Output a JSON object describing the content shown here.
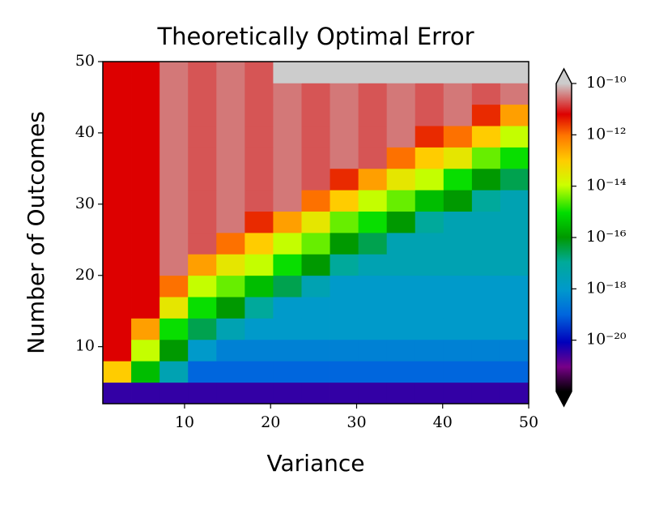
{
  "chart_data": {
    "type": "heatmap",
    "title": "Theoretically Optimal Error",
    "xlabel": "Variance",
    "ylabel": "Number of Outcomes",
    "x": [
      2.15,
      5.45,
      8.75,
      12.05,
      15.35,
      18.65,
      21.95,
      25.25,
      28.55,
      31.85,
      35.15,
      38.45,
      41.75,
      45.05,
      48.35
    ],
    "y": [
      3.5,
      6.5,
      9.5,
      12.5,
      15.5,
      18.5,
      21.5,
      24.5,
      27.5,
      30.5,
      33.5,
      36.5,
      39.5,
      42.5,
      45.5,
      48.5
    ],
    "z": [
      [
        3.2e-21,
        3.2e-21,
        3.2e-21,
        3.2e-21,
        3.2e-21,
        3.2e-21,
        3.2e-21,
        3.2e-21,
        3.2e-21,
        3.2e-21,
        3.2e-21,
        3.2e-21,
        3.2e-21,
        3.2e-21,
        3.2e-21
      ],
      [
        1e-13,
        3.2e-16,
        3.2e-18,
        1e-19,
        1e-19,
        1e-19,
        1e-19,
        1e-19,
        1e-19,
        1e-19,
        1e-19,
        1e-19,
        1e-19,
        1e-19,
        1e-19
      ],
      [
        6.3e-12,
        1e-14,
        1e-16,
        1e-18,
        3.2e-19,
        3.2e-19,
        3.2e-19,
        3.2e-19,
        3.2e-19,
        3.2e-19,
        3.2e-19,
        3.2e-19,
        3.2e-19,
        3.2e-19,
        3.2e-19
      ],
      [
        6.3e-12,
        3.2e-13,
        1e-15,
        3.2e-17,
        3.2e-18,
        1e-18,
        1e-18,
        1e-18,
        1e-18,
        1e-18,
        1e-18,
        1e-18,
        1e-18,
        1e-18,
        1e-18
      ],
      [
        6.3e-12,
        6.3e-12,
        3.2e-14,
        1e-15,
        1e-16,
        1e-17,
        1e-18,
        1e-18,
        1e-18,
        1e-18,
        1e-18,
        1e-18,
        1e-18,
        1e-18,
        1e-18
      ],
      [
        6.3e-12,
        6.3e-12,
        1e-12,
        1e-14,
        3.2e-15,
        3.2e-16,
        3.2e-17,
        3.2e-18,
        1e-18,
        1e-18,
        1e-18,
        1e-18,
        1e-18,
        1e-18,
        1e-18
      ],
      [
        6.3e-12,
        6.3e-12,
        3.2e-11,
        3.2e-13,
        3.2e-14,
        1e-14,
        1e-15,
        1e-16,
        1e-17,
        3.2e-18,
        3.2e-18,
        3.2e-18,
        3.2e-18,
        3.2e-18,
        3.2e-18
      ],
      [
        6.3e-12,
        6.3e-12,
        3.2e-11,
        2e-11,
        1e-12,
        1e-13,
        1e-14,
        3.2e-15,
        1e-16,
        3.2e-17,
        3.2e-18,
        3.2e-18,
        3.2e-18,
        3.2e-18,
        3.2e-18
      ],
      [
        6.3e-12,
        6.3e-12,
        3.2e-11,
        2e-11,
        3.2e-11,
        3.2e-12,
        3.2e-13,
        3.2e-14,
        3.2e-15,
        1e-15,
        1e-16,
        1e-17,
        3.2e-18,
        3.2e-18,
        3.2e-18
      ],
      [
        6.3e-12,
        6.3e-12,
        3.2e-11,
        2e-11,
        3.2e-11,
        2e-11,
        3.2e-11,
        1e-12,
        1e-13,
        1e-14,
        3.2e-15,
        3.2e-16,
        1e-16,
        1e-17,
        3.2e-18
      ],
      [
        6.3e-12,
        6.3e-12,
        3.2e-11,
        2e-11,
        3.2e-11,
        2e-11,
        3.2e-11,
        2e-11,
        3.2e-12,
        3.2e-13,
        3.2e-14,
        1e-14,
        1e-15,
        1e-16,
        3.2e-17
      ],
      [
        6.3e-12,
        6.3e-12,
        3.2e-11,
        2e-11,
        3.2e-11,
        2e-11,
        3.2e-11,
        2e-11,
        3.2e-11,
        2e-11,
        1e-12,
        1e-13,
        3.2e-14,
        3.2e-15,
        1e-15
      ],
      [
        6.3e-12,
        6.3e-12,
        3.2e-11,
        2e-11,
        3.2e-11,
        2e-11,
        3.2e-11,
        2e-11,
        3.2e-11,
        2e-11,
        3.2e-11,
        3.2e-12,
        1e-12,
        1e-13,
        1e-14
      ],
      [
        6.3e-12,
        6.3e-12,
        3.2e-11,
        2e-11,
        3.2e-11,
        2e-11,
        3.2e-11,
        2e-11,
        3.2e-11,
        2e-11,
        3.2e-11,
        2e-11,
        3.2e-11,
        3.2e-12,
        3.2e-13
      ],
      [
        6.3e-12,
        6.3e-12,
        3.2e-11,
        2e-11,
        3.2e-11,
        2e-11,
        3.2e-11,
        2e-11,
        3.2e-11,
        2e-11,
        3.2e-11,
        2e-11,
        3.2e-11,
        2e-11,
        3.2e-11
      ],
      [
        6.3e-12,
        6.3e-12,
        3.2e-11,
        2e-11,
        3.2e-11,
        2e-11,
        1.3e-10,
        1.3e-10,
        1.3e-10,
        1.3e-10,
        1.3e-10,
        1.3e-10,
        1.3e-10,
        1.3e-10,
        1.3e-10
      ]
    ],
    "xlim": [
      0.5,
      50
    ],
    "ylim": [
      2,
      50
    ],
    "xticks": [
      10,
      20,
      30,
      40,
      50
    ],
    "yticks": [
      10,
      20,
      30,
      40,
      50
    ],
    "cscale": "log",
    "clim": [
      1e-22,
      1e-10
    ],
    "cticks": [
      {
        "value": 1e-10,
        "label": "10⁻¹⁰"
      },
      {
        "value": 1e-12,
        "label": "10⁻¹²"
      },
      {
        "value": 1e-14,
        "label": "10⁻¹⁴"
      },
      {
        "value": 1e-16,
        "label": "10⁻¹⁶"
      },
      {
        "value": 1e-18,
        "label": "10⁻¹⁸"
      },
      {
        "value": 1e-20,
        "label": "10⁻²⁰"
      }
    ],
    "colormap": [
      [
        0,
        "#000000"
      ],
      [
        0.08,
        "#770088"
      ],
      [
        0.16,
        "#0000bb"
      ],
      [
        0.25,
        "#0066dd"
      ],
      [
        0.33,
        "#0099cc"
      ],
      [
        0.42,
        "#00aa99"
      ],
      [
        0.5,
        "#009900"
      ],
      [
        0.58,
        "#00dd00"
      ],
      [
        0.67,
        "#ccff00"
      ],
      [
        0.75,
        "#ffcc00"
      ],
      [
        0.83,
        "#ff7700"
      ],
      [
        0.9,
        "#dd0000"
      ],
      [
        1,
        "#cccccc"
      ]
    ],
    "over_color": "#cccccc",
    "under_color": "#000000"
  }
}
